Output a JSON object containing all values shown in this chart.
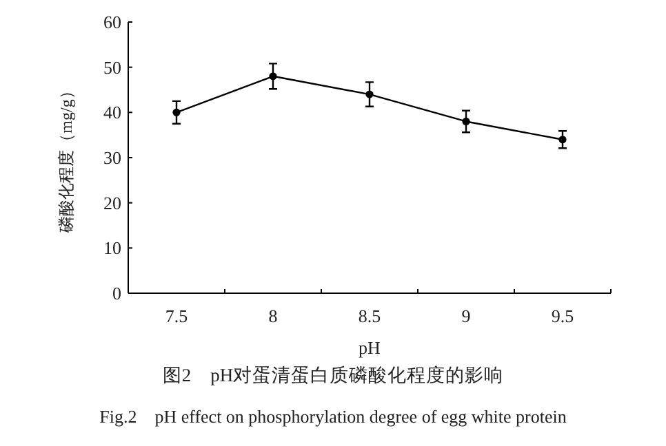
{
  "chart_data": {
    "type": "line",
    "title": "图2　pH对蛋清蛋白质磷酸化程度的影响",
    "subtitle": "Fig.2　pH effect on phosphorylation degree of egg white protein",
    "xlabel": "pH",
    "ylabel": "磷酸化程度（mg/g）",
    "categories": [
      "7.5",
      "8",
      "8.5",
      "9",
      "9.5"
    ],
    "series": [
      {
        "color": "#000000",
        "values": [
          40,
          48,
          44,
          38,
          34
        ],
        "errors": [
          2.5,
          2.8,
          2.7,
          2.4,
          1.9
        ]
      }
    ],
    "ylim": [
      0,
      60
    ],
    "yticks": [
      0,
      10,
      20,
      30,
      40,
      50,
      60
    ],
    "marker": "circle",
    "line_style": "solid"
  }
}
